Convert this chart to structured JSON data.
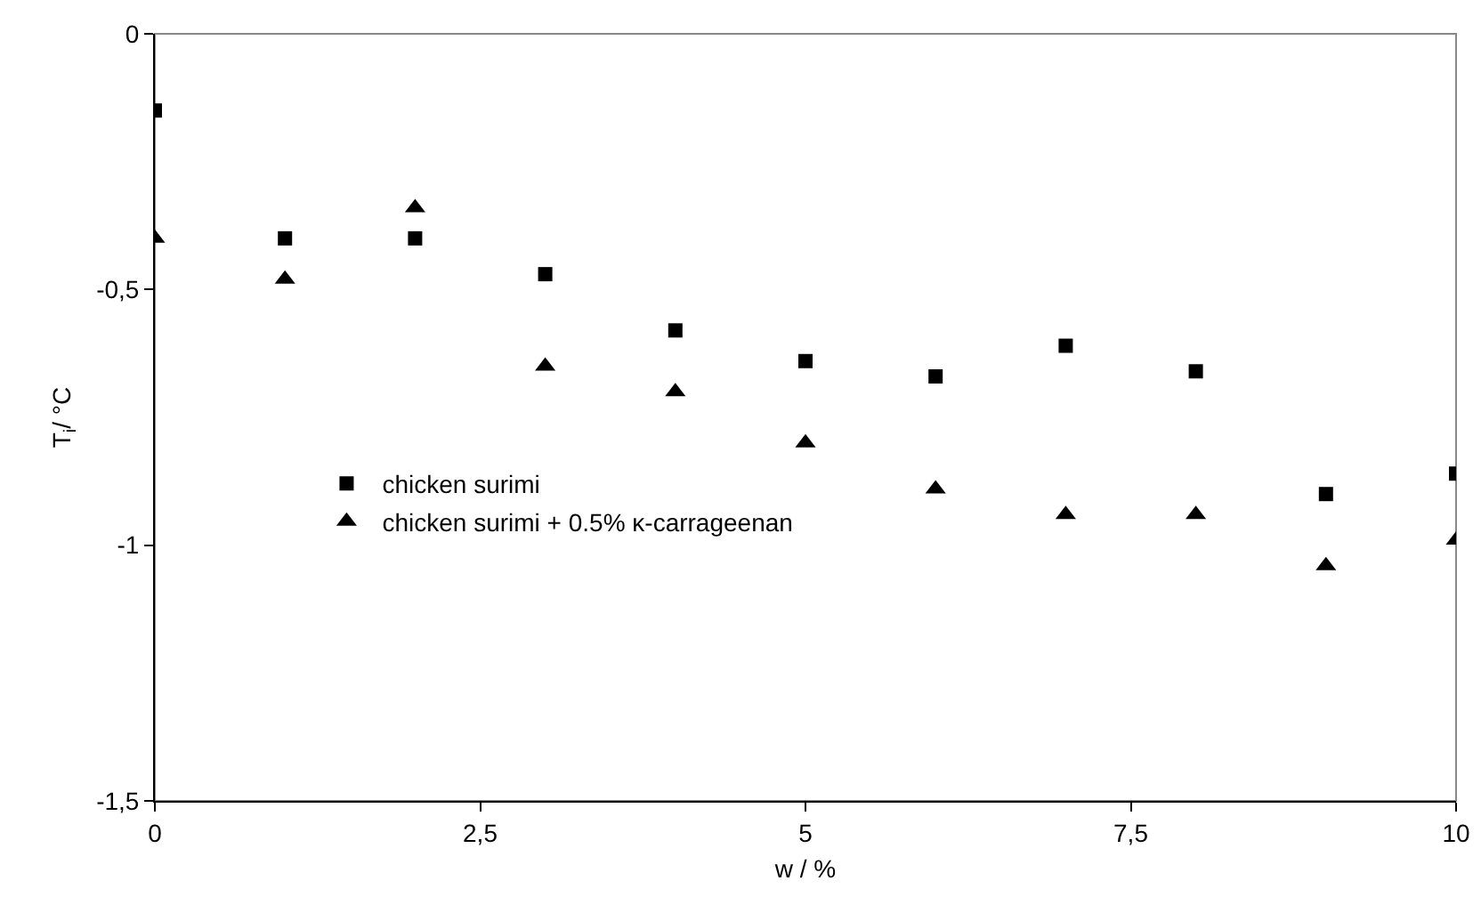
{
  "chart_data": {
    "type": "scatter",
    "xlabel": "w / %",
    "ylabel": "T$_{i}$/ °C",
    "x": [
      0,
      1,
      2,
      3,
      4,
      5,
      6,
      7,
      8,
      9,
      10
    ],
    "series": [
      {
        "name": "chicken surimi",
        "color": "#000000",
        "marker": "square",
        "values": [
          -0.15,
          -0.4,
          -0.4,
          -0.47,
          -0.58,
          -0.64,
          -0.67,
          -0.61,
          -0.66,
          -0.9,
          -0.86
        ]
      },
      {
        "name": "chicken surimi + 0.5% κ-carrageenan",
        "color": "#000000",
        "marker": "triangle",
        "values": [
          -0.4,
          -0.48,
          -0.34,
          -0.65,
          -0.7,
          -0.8,
          -0.89,
          -0.94,
          -0.94,
          -1.04,
          -0.99
        ]
      }
    ],
    "xlim": [
      0,
      10
    ],
    "xticks": [
      0,
      {
        "value": 2.5,
        "label": "2,5"
      },
      5,
      {
        "value": 7.5,
        "label": "7,5"
      },
      10
    ],
    "ylim": [
      -1.5,
      0
    ],
    "yticks": [
      {
        "value": -1.5,
        "label": "-1,5"
      },
      -1,
      {
        "value": -0.5,
        "label": "-0,5"
      },
      0
    ],
    "grid": false,
    "legend": "left"
  }
}
